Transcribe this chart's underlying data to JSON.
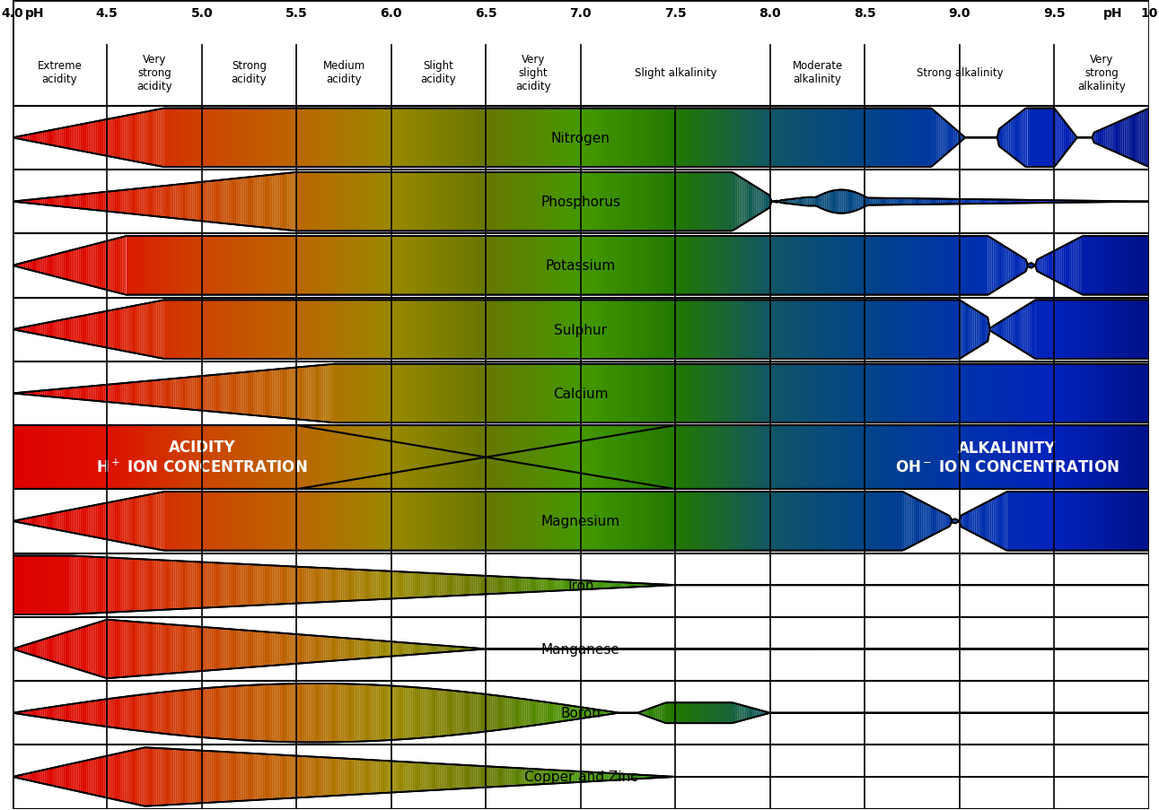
{
  "ph_min": 4.0,
  "ph_max": 10.0,
  "ph_ticks": [
    4.0,
    4.5,
    5.0,
    5.5,
    6.0,
    6.5,
    7.0,
    7.5,
    8.0,
    8.5,
    9.0,
    9.5,
    10.0
  ],
  "ph_labels": [
    "4.0",
    "4.5",
    "5.0",
    "5.5",
    "6.0",
    "6.5",
    "7.0",
    "7.5",
    "8.0",
    "8.5",
    "9.0",
    "9.5",
    "10"
  ],
  "header_categories": [
    {
      "label": "Extreme\nacidity",
      "x": 4.25
    },
    {
      "label": "Very\nstrong\nacidity",
      "x": 4.75
    },
    {
      "label": "Strong\nacidity",
      "x": 5.25
    },
    {
      "label": "Medium\nacidity",
      "x": 5.75
    },
    {
      "label": "Slight\nacidity",
      "x": 6.25
    },
    {
      "label": "Very\nslight\nacidity",
      "x": 6.75
    },
    {
      "label": "Slight alkalinity",
      "x": 7.5
    },
    {
      "label": "Moderate\nalkalinity",
      "x": 8.25
    },
    {
      "label": "Strong alkalinity",
      "x": 9.0
    },
    {
      "label": "Very\nstrong\nalkalinity",
      "x": 9.75
    }
  ],
  "gradient_colors": [
    [
      4.0,
      "#dd0000"
    ],
    [
      4.5,
      "#dd1100"
    ],
    [
      5.0,
      "#cc4400"
    ],
    [
      5.5,
      "#bb6600"
    ],
    [
      6.0,
      "#998800"
    ],
    [
      6.5,
      "#667700"
    ],
    [
      7.0,
      "#449900"
    ],
    [
      7.5,
      "#227700"
    ],
    [
      8.0,
      "#115566"
    ],
    [
      8.5,
      "#004488"
    ],
    [
      9.0,
      "#0033aa"
    ],
    [
      9.5,
      "#0022bb"
    ],
    [
      10.0,
      "#001188"
    ]
  ],
  "nutrients": [
    {
      "name": "Nitrogen"
    },
    {
      "name": "Phosphorus"
    },
    {
      "name": "Potassium"
    },
    {
      "name": "Sulphur"
    },
    {
      "name": "Calcium"
    },
    {
      "name": "ACIDITY_LABEL"
    },
    {
      "name": "Magnesium"
    },
    {
      "name": "Iron"
    },
    {
      "name": "Manganese"
    },
    {
      "name": "Boron"
    },
    {
      "name": "Copper and Zinc"
    }
  ],
  "background_color": "#ffffff"
}
